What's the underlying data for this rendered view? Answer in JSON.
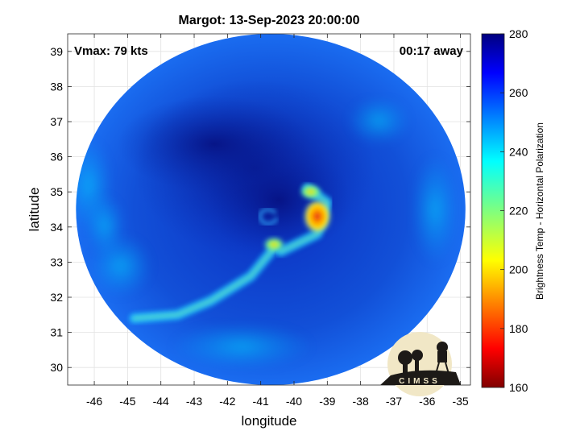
{
  "chart_data": {
    "type": "heatmap",
    "title": "Margot: 13-Sep-2023 20:00:00",
    "xlabel": "longitude",
    "ylabel": "latitude",
    "xlim": [
      -46.8,
      -34.7
    ],
    "ylim": [
      29.5,
      39.5
    ],
    "xticks": [
      -46,
      -45,
      -44,
      -43,
      -42,
      -41,
      -40,
      -39,
      -38,
      -37,
      -36,
      -35
    ],
    "yticks": [
      30,
      31,
      32,
      33,
      34,
      35,
      36,
      37,
      38,
      39
    ],
    "grid": true,
    "annotations": {
      "left": "Vmax: 79 kts",
      "right": "00:17 away"
    },
    "storm_center": {
      "lon": -40.7,
      "lat": 34.3
    },
    "swath": {
      "center_lon": -40.7,
      "center_lat": 34.5,
      "radius_lon": 5.85,
      "radius_lat": 5.0
    },
    "colorbar": {
      "label": "Brightness Temp - Horizontal Polarization",
      "range": [
        160,
        280
      ],
      "ticks": [
        160,
        180,
        200,
        220,
        240,
        260,
        280
      ],
      "colormap": "jet"
    },
    "features": [
      {
        "kind": "warm-core",
        "lon": -39.3,
        "lat": 34.3,
        "value": 192
      },
      {
        "kind": "warm-core",
        "lon": -39.5,
        "lat": 35.0,
        "value": 212
      },
      {
        "kind": "warm-core",
        "lon": -40.6,
        "lat": 33.5,
        "value": 215
      },
      {
        "kind": "rainband",
        "path": [
          [
            -44.8,
            31.4
          ],
          [
            -43.5,
            31.5
          ],
          [
            -42.5,
            31.9
          ],
          [
            -41.3,
            32.6
          ],
          [
            -40.6,
            33.4
          ]
        ],
        "value": 232
      },
      {
        "kind": "rainband",
        "path": [
          [
            -39.6,
            35.1
          ],
          [
            -39.0,
            34.7
          ],
          [
            -39.3,
            33.8
          ],
          [
            -40.4,
            33.3
          ]
        ],
        "value": 225
      }
    ]
  },
  "logo": {
    "text": "CIMSS"
  }
}
